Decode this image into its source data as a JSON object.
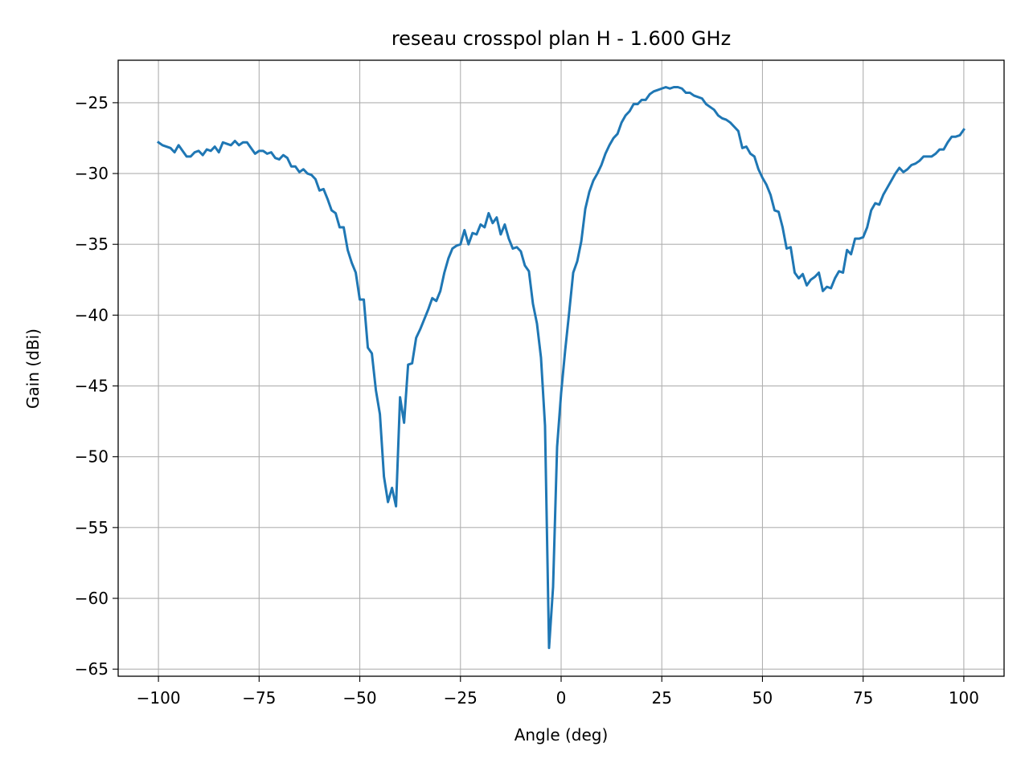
{
  "chart_data": {
    "type": "line",
    "title": "reseau crosspol plan H - 1.600 GHz",
    "xlabel": "Angle (deg)",
    "ylabel": "Gain (dBi)",
    "xlim": [
      -110,
      110
    ],
    "ylim": [
      -65.5,
      -22
    ],
    "xticks": [
      -100,
      -75,
      -50,
      -25,
      0,
      25,
      50,
      75,
      100
    ],
    "xtick_labels": [
      "−100",
      "−75",
      "−50",
      "−25",
      "0",
      "25",
      "50",
      "75",
      "100"
    ],
    "yticks": [
      -25,
      -30,
      -35,
      -40,
      -45,
      -50,
      -55,
      -60,
      -65
    ],
    "ytick_labels": [
      "−25",
      "−30",
      "−35",
      "−40",
      "−45",
      "−50",
      "−55",
      "−60",
      "−65"
    ],
    "grid": true,
    "color": "#1f77b4",
    "series": [
      {
        "x": [
          -100,
          -99,
          -98,
          -97,
          -96,
          -95,
          -94,
          -93,
          -92,
          -91,
          -90,
          -89,
          -88,
          -87,
          -86,
          -85,
          -84,
          -83,
          -82,
          -81,
          -80,
          -79,
          -78,
          -77,
          -76,
          -75,
          -74,
          -73,
          -72,
          -71,
          -70,
          -69,
          -68,
          -67,
          -66,
          -65,
          -64,
          -63,
          -62,
          -61,
          -60,
          -59,
          -58,
          -57,
          -56,
          -55,
          -54,
          -53,
          -52,
          -51,
          -50,
          -49,
          -48,
          -47,
          -46,
          -45,
          -44,
          -43,
          -42,
          -41,
          -40,
          -39,
          -38,
          -37,
          -36,
          -35,
          -34,
          -33,
          -32,
          -31,
          -30,
          -29,
          -28,
          -27,
          -26,
          -25,
          -24,
          -23,
          -22,
          -21,
          -20,
          -19,
          -18,
          -17,
          -16,
          -15,
          -14,
          -13,
          -12,
          -11,
          -10,
          -9,
          -8,
          -7,
          -6,
          -5,
          -4,
          -3,
          -2,
          -1,
          0,
          1,
          2,
          3,
          4,
          5,
          6,
          7,
          8,
          9,
          10,
          11,
          12,
          13,
          14,
          15,
          16,
          17,
          18,
          19,
          20,
          21,
          22,
          23,
          24,
          25,
          26,
          27,
          28,
          29,
          30,
          31,
          32,
          33,
          34,
          35,
          36,
          37,
          38,
          39,
          40,
          41,
          42,
          43,
          44,
          45,
          46,
          47,
          48,
          49,
          50,
          51,
          52,
          53,
          54,
          55,
          56,
          57,
          58,
          59,
          60,
          61,
          62,
          63,
          64,
          65,
          66,
          67,
          68,
          69,
          70,
          71,
          72,
          73,
          74,
          75,
          76,
          77,
          78,
          79,
          80,
          81,
          82,
          83,
          84,
          85,
          86,
          87,
          88,
          89,
          90,
          91,
          92,
          93,
          94,
          95,
          96,
          97,
          98,
          99,
          100
        ],
        "y": [
          -27.8,
          -28.0,
          -28.1,
          -28.2,
          -28.5,
          -28.0,
          -28.4,
          -28.8,
          -28.8,
          -28.5,
          -28.4,
          -28.7,
          -28.3,
          -28.4,
          -28.1,
          -28.5,
          -27.8,
          -27.9,
          -28.0,
          -27.7,
          -28.0,
          -27.8,
          -27.8,
          -28.2,
          -28.6,
          -28.4,
          -28.4,
          -28.6,
          -28.5,
          -28.9,
          -29.0,
          -28.7,
          -28.9,
          -29.5,
          -29.5,
          -29.9,
          -29.7,
          -30.0,
          -30.1,
          -30.4,
          -31.2,
          -31.1,
          -31.8,
          -32.6,
          -32.8,
          -33.8,
          -33.8,
          -35.4,
          -36.3,
          -37.0,
          -38.9,
          -38.9,
          -42.3,
          -42.7,
          -45.3,
          -47.0,
          -51.4,
          -53.2,
          -52.2,
          -53.5,
          -45.8,
          -47.6,
          -43.5,
          -43.4,
          -41.6,
          -41.0,
          -40.3,
          -39.6,
          -38.8,
          -39.0,
          -38.3,
          -37.0,
          -36.0,
          -35.3,
          -35.1,
          -35.0,
          -34.0,
          -35.0,
          -34.2,
          -34.3,
          -33.6,
          -33.8,
          -32.8,
          -33.5,
          -33.1,
          -34.3,
          -33.6,
          -34.6,
          -35.3,
          -35.2,
          -35.5,
          -36.5,
          -36.9,
          -39.2,
          -40.6,
          -43.0,
          -47.8,
          -63.5,
          -59.2,
          -49.3,
          -45.5,
          -42.5,
          -39.8,
          -37.0,
          -36.2,
          -34.8,
          -32.5,
          -31.3,
          -30.5,
          -30.0,
          -29.4,
          -28.6,
          -28.0,
          -27.5,
          -27.2,
          -26.4,
          -25.9,
          -25.6,
          -25.1,
          -25.1,
          -24.8,
          -24.8,
          -24.4,
          -24.2,
          -24.1,
          -24.0,
          -23.9,
          -24.0,
          -23.9,
          -23.9,
          -24.0,
          -24.3,
          -24.3,
          -24.5,
          -24.6,
          -24.7,
          -25.1,
          -25.3,
          -25.5,
          -25.9,
          -26.1,
          -26.2,
          -26.4,
          -26.7,
          -27.0,
          -28.2,
          -28.1,
          -28.6,
          -28.8,
          -29.7,
          -30.3,
          -30.8,
          -31.5,
          -32.6,
          -32.7,
          -33.8,
          -35.3,
          -35.2,
          -37.0,
          -37.4,
          -37.1,
          -37.9,
          -37.5,
          -37.3,
          -37.0,
          -38.3,
          -38.0,
          -38.1,
          -37.4,
          -36.9,
          -37.0,
          -35.4,
          -35.7,
          -34.6,
          -34.6,
          -34.5,
          -33.8,
          -32.6,
          -32.1,
          -32.2,
          -31.5,
          -31.0,
          -30.5,
          -30.0,
          -29.6,
          -29.9,
          -29.7,
          -29.4,
          -29.3,
          -29.1,
          -28.8,
          -28.8,
          -28.8,
          -28.6,
          -28.3,
          -28.3,
          -27.8,
          -27.4,
          -27.4,
          -27.3,
          -26.9
        ]
      }
    ]
  }
}
